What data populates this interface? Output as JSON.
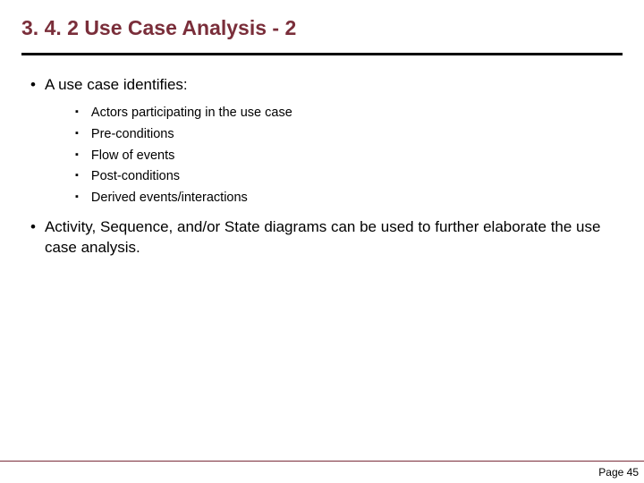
{
  "colors": {
    "title": "#7a2e3a",
    "rule_top": "#000000",
    "rule_bottom": "#7a2e3a",
    "text": "#000000",
    "background": "#ffffff"
  },
  "typography": {
    "title_fontsize": 23,
    "title_fontweight": "bold",
    "l1_fontsize": 17,
    "l2_fontsize": 14.5,
    "page_fontsize": 12,
    "font_family": "Verdana"
  },
  "title": "3. 4. 2 Use Case Analysis - 2",
  "bullets": [
    {
      "mark": "•",
      "text": "A use case identifies:",
      "sub": [
        {
          "mark": "▪",
          "text": "Actors participating in the use case"
        },
        {
          "mark": "▪",
          "text": "Pre-conditions"
        },
        {
          "mark": "▪",
          "text": "Flow of events"
        },
        {
          "mark": "▪",
          "text": "Post-conditions"
        },
        {
          "mark": "▪",
          "text": "Derived events/interactions"
        }
      ]
    },
    {
      "mark": "•",
      "text": "Activity, Sequence, and/or State diagrams can be used to further elaborate the use case analysis."
    }
  ],
  "page": "Page 45"
}
